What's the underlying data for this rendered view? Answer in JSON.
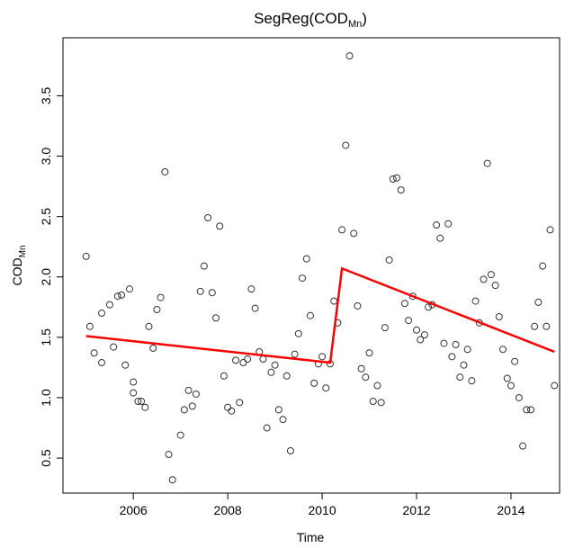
{
  "chart_data": {
    "type": "scatter",
    "title": "SegReg(COD",
    "title_subscript": "Mn",
    "title_suffix": ")",
    "x_label": "Time",
    "y_label": "COD",
    "y_label_subscript": "Mn",
    "xlim": [
      2004.51,
      2015.03
    ],
    "xticks": [
      2006,
      2008,
      2010,
      2012,
      2014
    ],
    "ylim": [
      0.21,
      3.98
    ],
    "yticks": [
      {
        "value": 0.5,
        "label": "0.5"
      },
      {
        "value": 1,
        "label": "1.0"
      },
      {
        "value": 1.5,
        "label": "1.5"
      },
      {
        "value": 2,
        "label": "2.0"
      },
      {
        "value": 2.5,
        "label": "2.5"
      },
      {
        "value": 3,
        "label": "3.0"
      },
      {
        "value": 3.5,
        "label": "3.5"
      }
    ],
    "series": [
      {
        "type": "scatter",
        "color": "#333333",
        "x": [
          2005.0,
          2005.08,
          2005.17,
          2005.33,
          2005.33,
          2005.5,
          2005.58,
          2005.67,
          2005.75,
          2005.83,
          2005.92,
          2006.0,
          2006.0,
          2006.1,
          2006.17,
          2006.25,
          2006.33,
          2006.42,
          2006.5,
          2006.58,
          2006.67,
          2006.75,
          2006.83,
          2007.0,
          2007.08,
          2007.17,
          2007.25,
          2007.33,
          2007.42,
          2007.5,
          2007.58,
          2007.67,
          2007.75,
          2007.83,
          2007.92,
          2008.0,
          2008.08,
          2008.17,
          2008.25,
          2008.33,
          2008.42,
          2008.5,
          2008.58,
          2008.67,
          2008.75,
          2008.83,
          2008.92,
          2009.0,
          2009.08,
          2009.17,
          2009.25,
          2009.33,
          2009.42,
          2009.5,
          2009.58,
          2009.67,
          2009.75,
          2009.83,
          2009.92,
          2010.0,
          2010.08,
          2010.17,
          2010.25,
          2010.33,
          2010.42,
          2010.5,
          2010.58,
          2010.67,
          2010.75,
          2010.83,
          2010.92,
          2011.0,
          2011.08,
          2011.17,
          2011.25,
          2011.33,
          2011.42,
          2011.5,
          2011.58,
          2011.67,
          2011.75,
          2011.83,
          2011.92,
          2012.0,
          2012.08,
          2012.17,
          2012.25,
          2012.33,
          2012.42,
          2012.5,
          2012.58,
          2012.67,
          2012.75,
          2012.83,
          2012.92,
          2013.0,
          2013.08,
          2013.17,
          2013.25,
          2013.33,
          2013.42,
          2013.5,
          2013.58,
          2013.67,
          2013.75,
          2013.83,
          2013.92,
          2014.0,
          2014.08,
          2014.17,
          2014.25,
          2014.33,
          2014.42,
          2014.5,
          2014.58,
          2014.67,
          2014.75,
          2014.83,
          2014.92
        ],
        "values": [
          2.17,
          1.59,
          1.37,
          1.29,
          1.7,
          1.77,
          1.42,
          1.84,
          1.85,
          1.27,
          1.9,
          1.04,
          1.13,
          0.97,
          0.97,
          0.92,
          1.59,
          1.41,
          1.73,
          1.83,
          2.87,
          0.53,
          0.32,
          0.69,
          0.9,
          1.06,
          0.93,
          1.03,
          1.88,
          2.09,
          2.49,
          1.87,
          1.66,
          2.42,
          1.18,
          0.92,
          0.89,
          1.31,
          0.96,
          1.29,
          1.32,
          1.9,
          1.74,
          1.38,
          1.32,
          0.75,
          1.21,
          1.27,
          0.9,
          0.82,
          1.18,
          0.56,
          1.36,
          1.53,
          1.99,
          2.15,
          1.68,
          1.12,
          1.28,
          1.34,
          1.08,
          1.28,
          1.8,
          1.62,
          2.39,
          3.09,
          3.83,
          2.36,
          1.76,
          1.24,
          1.17,
          1.37,
          0.97,
          1.1,
          0.96,
          1.58,
          2.14,
          2.81,
          2.82,
          2.72,
          1.78,
          1.64,
          1.84,
          1.56,
          1.48,
          1.52,
          1.75,
          1.77,
          2.43,
          2.32,
          1.45,
          2.44,
          1.34,
          1.44,
          1.17,
          1.27,
          1.4,
          1.14,
          1.8,
          1.62,
          1.98,
          2.94,
          2.02,
          1.93,
          1.67,
          1.4,
          1.16,
          1.1,
          1.3,
          1.0,
          0.6,
          0.9,
          0.9,
          1.59,
          1.79,
          2.09,
          1.59,
          2.39,
          1.1
        ]
      },
      {
        "type": "line",
        "color": "#ff0000",
        "x": [
          2005.0,
          2010.17,
          2010.42,
          2014.92
        ],
        "values": [
          1.51,
          1.29,
          2.07,
          1.38
        ]
      }
    ]
  }
}
